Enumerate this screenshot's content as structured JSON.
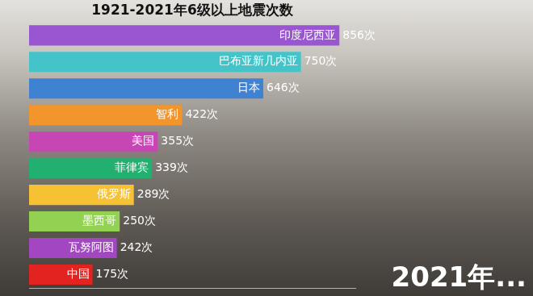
{
  "chart_data": {
    "type": "bar",
    "title": "1921-2021年6级以上地震次数",
    "orientation": "horizontal",
    "categories": [
      "印度尼西亚",
      "巴布亚新几内亚",
      "日本",
      "智利",
      "美国",
      "菲律宾",
      "俄罗斯",
      "墨西哥",
      "瓦努阿图",
      "中国"
    ],
    "values": [
      856,
      750,
      646,
      422,
      355,
      339,
      289,
      250,
      242,
      175
    ],
    "value_labels": [
      "856次",
      "750次",
      "646次",
      "422次",
      "355次",
      "339次",
      "289次",
      "250次",
      "242次",
      "175次"
    ],
    "colors": [
      "#9a55d0",
      "#44c4c8",
      "#3f82d2",
      "#f2952c",
      "#c646b4",
      "#22b071",
      "#f6c233",
      "#92d152",
      "#a246c2",
      "#e3231f"
    ],
    "data_labels": true,
    "tick_labels": false,
    "grid": false,
    "xlim": [
      0,
      900
    ],
    "annotations": [
      "2021年..."
    ]
  }
}
